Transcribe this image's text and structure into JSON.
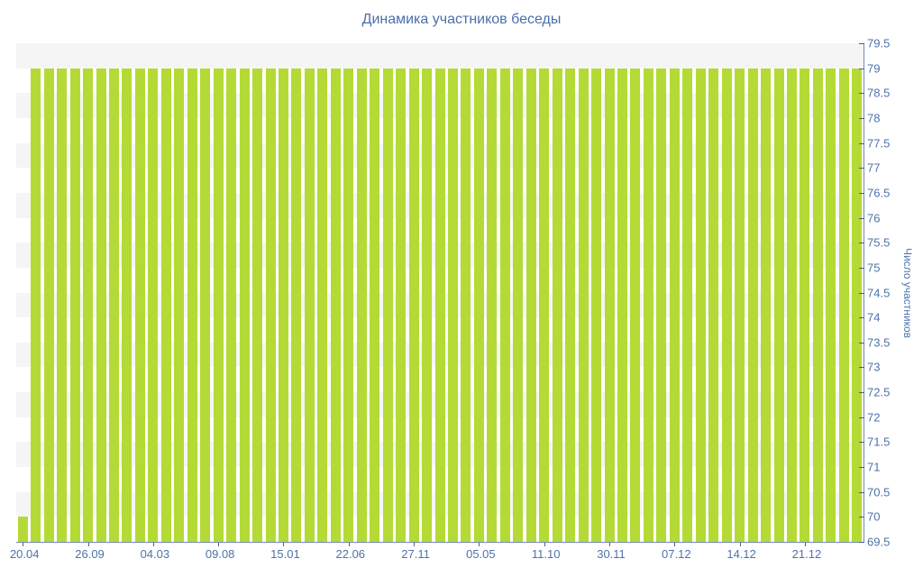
{
  "chart_data": {
    "type": "bar",
    "title": "Динамика участников беседы",
    "xlabel": "",
    "ylabel": "Число участников",
    "ylim": [
      69.5,
      79.5
    ],
    "y_tick_step": 0.5,
    "y_tick_labels": [
      "79.5",
      "79",
      "78.5",
      "78",
      "77.5",
      "77",
      "76.5",
      "76",
      "75.5",
      "75",
      "74.5",
      "74",
      "73.5",
      "73",
      "72.5",
      "72",
      "71.5",
      "71",
      "70.5",
      "70",
      "69.5"
    ],
    "x_tick_labels": [
      "20.04",
      "26.09",
      "04.03",
      "09.08",
      "15.01",
      "22.06",
      "27.11",
      "05.05",
      "11.10",
      "30.11",
      "07.12",
      "14.12",
      "21.12"
    ],
    "x_label_every_n_bars": 5,
    "n_bars": 65,
    "values": [
      70,
      79,
      79,
      79,
      79,
      79,
      79,
      79,
      79,
      79,
      79,
      79,
      79,
      79,
      79,
      79,
      79,
      79,
      79,
      79,
      79,
      79,
      79,
      79,
      79,
      79,
      79,
      79,
      79,
      79,
      79,
      79,
      79,
      79,
      79,
      79,
      79,
      79,
      79,
      79,
      79,
      79,
      79,
      79,
      79,
      79,
      79,
      79,
      79,
      79,
      79,
      79,
      79,
      79,
      79,
      79,
      79,
      79,
      79,
      79,
      79,
      79,
      79,
      79,
      79
    ],
    "grid": "horizontal-split-bands",
    "legend": "none",
    "axis_position": "right-and-bottom",
    "colors": {
      "bar": "#b4da36",
      "band_gray": "#f5f5f5",
      "band_white": "#ffffff",
      "axis_line": "#7789b9",
      "tick_mark": "#44618f",
      "tick_label": "#4e72ad",
      "title": "#4a70a8",
      "axis_name": "#4e72ad",
      "background": "#ffffff"
    }
  }
}
